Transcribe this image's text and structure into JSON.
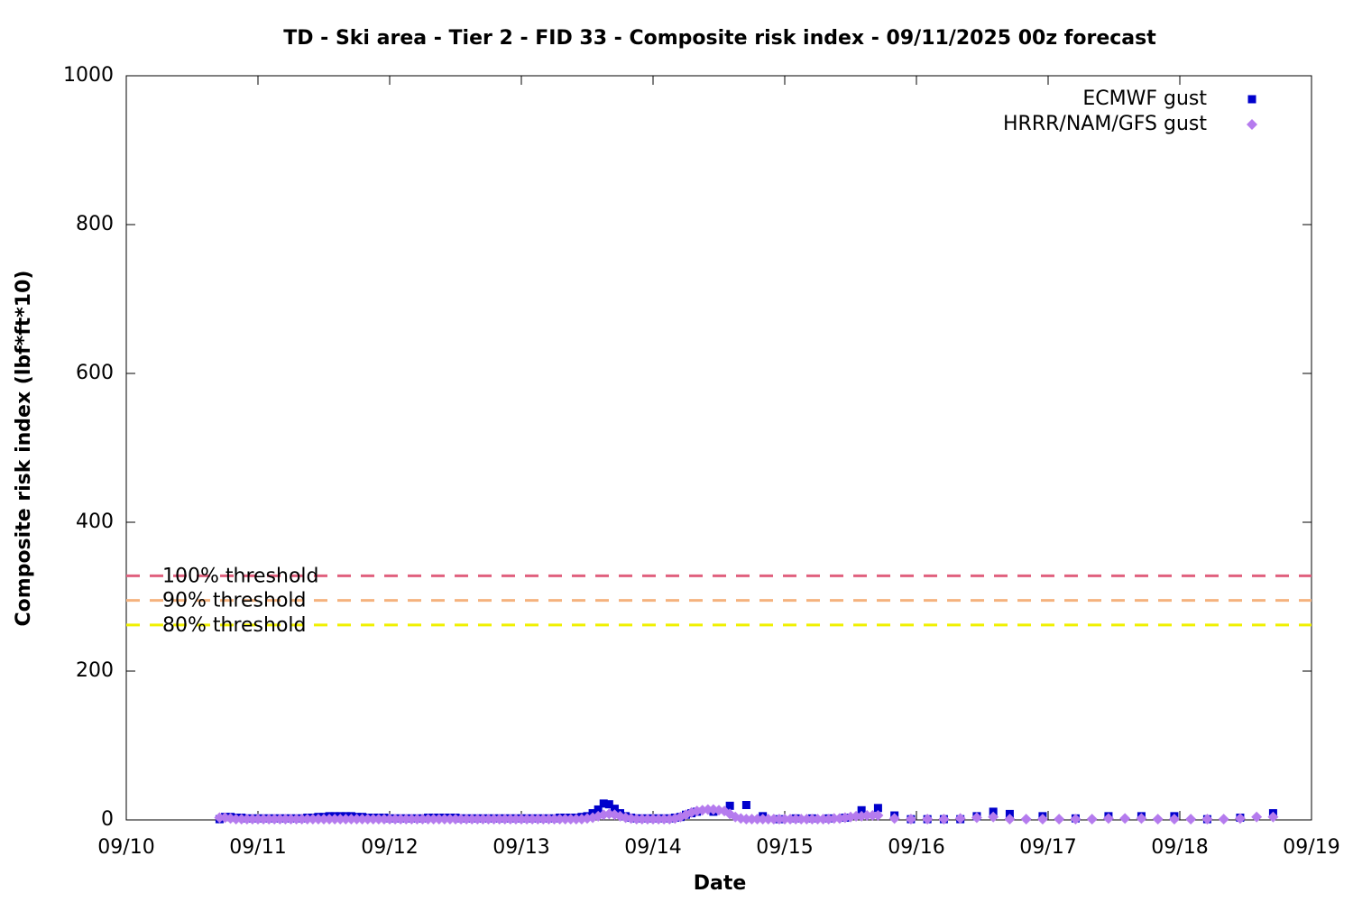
{
  "chart_data": {
    "type": "scatter",
    "title": "TD - Ski area - Tier 2 - FID 33 - Composite risk index - 09/11/2025 00z forecast",
    "x_label": "Date",
    "y_label": "Composite risk index (lbf*ft*10)",
    "xlim": [
      0,
      216
    ],
    "xticks": [
      {
        "value": 0,
        "label": "09/10"
      },
      {
        "value": 24,
        "label": "09/11"
      },
      {
        "value": 48,
        "label": "09/12"
      },
      {
        "value": 72,
        "label": "09/13"
      },
      {
        "value": 96,
        "label": "09/14"
      },
      {
        "value": 120,
        "label": "09/15"
      },
      {
        "value": 144,
        "label": "09/16"
      },
      {
        "value": 168,
        "label": "09/17"
      },
      {
        "value": 192,
        "label": "09/18"
      },
      {
        "value": 216,
        "label": "09/19"
      }
    ],
    "ylim": [
      0,
      1000
    ],
    "yticks": [
      0,
      200,
      400,
      600,
      800,
      1000
    ],
    "grid": false,
    "legend": "top-right",
    "thresholds": [
      {
        "label": "100% threshold",
        "value": 328,
        "color": "#e0607e"
      },
      {
        "label": "90% threshold",
        "value": 295,
        "color": "#f5b27e"
      },
      {
        "label": "80% threshold",
        "value": 262,
        "color": "#f0f000"
      }
    ],
    "series": [
      {
        "name": "ECMWF gust",
        "color": "#0000cc",
        "marker": "square",
        "x": [
          17,
          18,
          19,
          20,
          21,
          22,
          23,
          24,
          25,
          26,
          27,
          28,
          29,
          30,
          31,
          32,
          33,
          34,
          35,
          36,
          37,
          38,
          39,
          40,
          41,
          42,
          43,
          44,
          45,
          46,
          47,
          48,
          49,
          50,
          51,
          52,
          53,
          54,
          55,
          56,
          57,
          58,
          59,
          60,
          61,
          62,
          63,
          64,
          65,
          66,
          67,
          68,
          69,
          70,
          71,
          72,
          73,
          74,
          75,
          76,
          77,
          78,
          79,
          80,
          81,
          82,
          83,
          84,
          85,
          86,
          87,
          88,
          89,
          90,
          91,
          92,
          93,
          94,
          95,
          96,
          97,
          98,
          99,
          100,
          101,
          102,
          103,
          104,
          107,
          110,
          113,
          116,
          119,
          122,
          125,
          128,
          131,
          134,
          137,
          140,
          143,
          146,
          149,
          152,
          155,
          158,
          161,
          167,
          173,
          179,
          185,
          191,
          197,
          203,
          209
        ],
        "values": [
          1,
          4,
          4,
          3,
          3,
          2,
          2,
          2,
          2,
          2,
          2,
          2,
          2,
          2,
          2,
          2,
          3,
          3,
          4,
          4,
          5,
          5,
          5,
          5,
          5,
          4,
          4,
          3,
          3,
          3,
          3,
          2,
          2,
          2,
          2,
          2,
          2,
          2,
          3,
          3,
          3,
          3,
          3,
          3,
          2,
          2,
          2,
          2,
          2,
          2,
          2,
          2,
          2,
          2,
          2,
          2,
          2,
          2,
          2,
          2,
          2,
          2,
          3,
          3,
          3,
          3,
          4,
          5,
          9,
          14,
          22,
          21,
          15,
          9,
          5,
          3,
          2,
          2,
          2,
          2,
          2,
          2,
          2,
          3,
          4,
          7,
          9,
          11,
          11,
          19,
          20,
          5,
          1,
          2,
          2,
          2,
          3,
          13,
          16,
          6,
          1,
          1,
          1,
          1,
          5,
          11,
          8,
          5,
          2,
          5,
          5,
          5,
          1,
          3,
          9
        ]
      },
      {
        "name": "HRRR/NAM/GFS gust",
        "color": "#b57bee",
        "marker": "diamond",
        "x": [
          17,
          18,
          19,
          20,
          21,
          22,
          23,
          24,
          25,
          26,
          27,
          28,
          29,
          30,
          31,
          32,
          33,
          34,
          35,
          36,
          37,
          38,
          39,
          40,
          41,
          42,
          43,
          44,
          45,
          46,
          47,
          48,
          49,
          50,
          51,
          52,
          53,
          54,
          55,
          56,
          57,
          58,
          59,
          60,
          61,
          62,
          63,
          64,
          65,
          66,
          67,
          68,
          69,
          70,
          71,
          72,
          73,
          74,
          75,
          76,
          77,
          78,
          79,
          80,
          81,
          82,
          83,
          84,
          85,
          86,
          87,
          88,
          89,
          90,
          91,
          92,
          93,
          94,
          95,
          96,
          97,
          98,
          99,
          100,
          101,
          102,
          103,
          104,
          105,
          106,
          107,
          108,
          109,
          110,
          111,
          112,
          113,
          114,
          115,
          116,
          117,
          118,
          119,
          120,
          121,
          122,
          123,
          124,
          125,
          126,
          127,
          128,
          129,
          130,
          131,
          132,
          133,
          134,
          135,
          136,
          137,
          140,
          143,
          146,
          149,
          152,
          155,
          158,
          161,
          164,
          167,
          170,
          173,
          176,
          179,
          182,
          185,
          188,
          191,
          194,
          197,
          200,
          203,
          206,
          209
        ],
        "values": [
          3,
          3,
          2,
          1,
          1,
          1,
          1,
          1,
          1,
          1,
          1,
          1,
          1,
          1,
          1,
          1,
          1,
          1,
          1,
          1,
          1,
          1,
          1,
          1,
          1,
          1,
          1,
          1,
          1,
          1,
          1,
          1,
          1,
          1,
          1,
          1,
          1,
          1,
          1,
          1,
          1,
          1,
          1,
          1,
          1,
          1,
          1,
          1,
          1,
          1,
          1,
          1,
          1,
          1,
          1,
          1,
          1,
          1,
          1,
          1,
          1,
          1,
          1,
          1,
          1,
          1,
          1,
          2,
          3,
          5,
          7,
          8,
          7,
          5,
          3,
          2,
          1,
          1,
          1,
          1,
          1,
          1,
          1,
          2,
          4,
          7,
          10,
          12,
          13,
          14,
          14,
          13,
          12,
          8,
          4,
          2,
          1,
          1,
          1,
          1,
          1,
          1,
          1,
          1,
          1,
          1,
          1,
          1,
          1,
          1,
          1,
          1,
          2,
          2,
          3,
          4,
          5,
          5,
          6,
          6,
          6,
          2,
          1,
          1,
          1,
          2,
          3,
          4,
          1,
          1,
          1,
          1,
          1,
          1,
          2,
          2,
          2,
          1,
          1,
          1,
          1,
          1,
          2,
          4,
          4
        ]
      }
    ]
  }
}
